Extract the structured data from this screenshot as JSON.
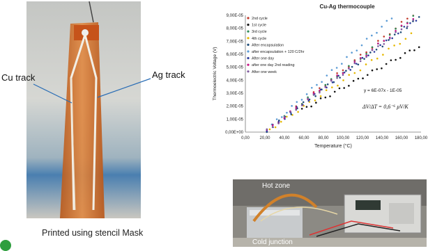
{
  "labels": {
    "cu_track": "Cu track",
    "ag_track": "Ag track",
    "caption": "Printed using stencil Mask",
    "hot_zone": "Hot zone",
    "cold_junction": "Cold junction"
  },
  "colors": {
    "kapton": "#d9782e",
    "bullet": "#2e9e3e"
  },
  "chart_data": {
    "type": "scatter",
    "title": "Cu-Ag thermocouple",
    "xlabel": "Temperature (°C)",
    "ylabel": "Thermoelectric Voltage (V)",
    "xlim": [
      0,
      180
    ],
    "ylim": [
      0,
      9e-05
    ],
    "x_ticks": [
      "0,00",
      "20,00",
      "40,00",
      "60,00",
      "80,00",
      "100,00",
      "120,00",
      "140,00",
      "160,00",
      "180,00"
    ],
    "y_ticks": [
      "0,00E+00",
      "1,00E-05",
      "2,00E-05",
      "3,00E-05",
      "4,00E-05",
      "5,00E-05",
      "6,00E-05",
      "7,00E-05",
      "8,00E-05",
      "9,00E-05"
    ],
    "legend_position": "top-left",
    "annotations": {
      "equation": "y = 6E-07x - 1E-05",
      "sensitivity": "ΔV/ΔT = 0,6⁻⁶ μV/K"
    },
    "series": [
      {
        "name": "2nd cycle",
        "color": "#c0392b",
        "x": [
          22,
          172
        ],
        "y": [
          1e-06,
          9.1e-05
        ]
      },
      {
        "name": "1st cycle",
        "color": "#111111",
        "x": [
          58,
          178
        ],
        "y": [
          1.7e-05,
          6.6e-05
        ]
      },
      {
        "name": "3rd cycle",
        "color": "#2e8b57",
        "x": [
          22,
          172
        ],
        "y": [
          1e-06,
          8.9e-05
        ]
      },
      {
        "name": "4th cycle",
        "color": "#e6b800",
        "x": [
          25,
          170
        ],
        "y": [
          2e-06,
          7.5e-05
        ]
      },
      {
        "name": "After encapsulation",
        "color": "#1f4e79",
        "x": [
          22,
          178
        ],
        "y": [
          1e-06,
          8.8e-05
        ]
      },
      {
        "name": "after encapsulation + 120 C/2hr",
        "color": "#5b9bd5",
        "x": [
          22,
          150
        ],
        "y": [
          2e-06,
          8.8e-05
        ]
      },
      {
        "name": "After one day",
        "color": "#2f3e9e",
        "x": [
          22,
          175
        ],
        "y": [
          1e-06,
          8.7e-05
        ]
      },
      {
        "name": "after one day 2nd reading",
        "color": "#c71585",
        "x": [
          22,
          172
        ],
        "y": [
          1e-06,
          8.8e-05
        ]
      },
      {
        "name": "After one week",
        "color": "#7f5a9e",
        "x": [
          22,
          172
        ],
        "y": [
          1e-06,
          8.6e-05
        ]
      }
    ]
  }
}
